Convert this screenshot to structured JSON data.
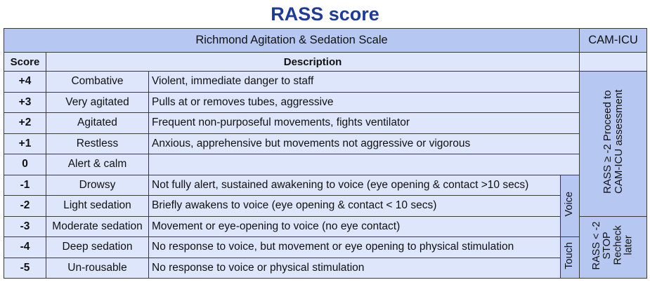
{
  "title": "RASS score",
  "header": {
    "scale_name": "Richmond Agitation & Sedation Scale",
    "cam_icu": "CAM-ICU",
    "score_col": "Score",
    "description_col": "Description"
  },
  "rows": [
    {
      "score": "+4",
      "term": "Combative",
      "description": "Violent, immediate danger to staff"
    },
    {
      "score": "+3",
      "term": "Very agitated",
      "description": "Pulls at or removes tubes, aggressive"
    },
    {
      "score": "+2",
      "term": "Agitated",
      "description": "Frequent non-purposeful movements, fights ventilator"
    },
    {
      "score": "+1",
      "term": "Restless",
      "description": "Anxious, apprehensive but movements not aggressive or vigorous"
    },
    {
      "score": "0",
      "term": "Alert & calm",
      "description": ""
    },
    {
      "score": "-1",
      "term": "Drowsy",
      "description": "Not fully alert, sustained awakening to voice (eye opening & contact >10 secs)"
    },
    {
      "score": "-2",
      "term": "Light sedation",
      "description": "Briefly awakens to voice (eye opening & contact < 10 secs)"
    },
    {
      "score": "-3",
      "term": "Moderate sedation",
      "description": "Movement or eye-opening to voice (no eye contact)"
    },
    {
      "score": "-4",
      "term": "Deep sedation",
      "description": "No response to voice, but movement or eye opening to physical stimulation"
    },
    {
      "score": "-5",
      "term": "Un-rousable",
      "description": "No response to voice or physical stimulation"
    }
  ],
  "stimulus": {
    "voice": "Voice",
    "touch": "Touch"
  },
  "cam_icu_notes": {
    "proceed": "RASS ≥ -2 Proceed to CAM-ICU assessment",
    "stop": "RASS < -2 STOP Recheck later"
  }
}
